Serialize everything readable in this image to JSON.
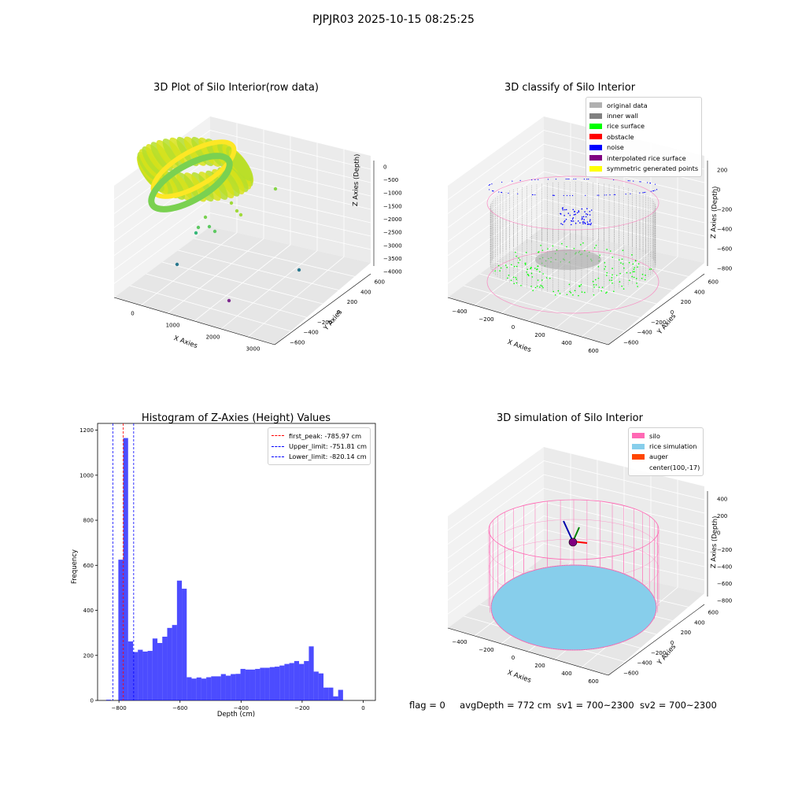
{
  "figure_title": "PJPJR03 2025-10-15 08:25:25",
  "footer": {
    "flag": "flag = 0",
    "avg_depth": "avgDepth = 772 cm",
    "sv1": "sv1 = 700~2300",
    "sv2": "sv2 = 700~2300"
  },
  "chart_data": [
    {
      "type": "scatter",
      "projection": "3d",
      "title": "3D Plot of Silo Interior(row data)",
      "xlabel": "X Axies",
      "ylabel": "Y Axies",
      "zlabel": "Z Axies (Depth)",
      "x_ticks": [
        "0",
        "1000",
        "2000",
        "3000"
      ],
      "y_ticks": [
        "600",
        "400",
        "200",
        "0",
        "−200",
        "−400",
        "−600"
      ],
      "z_ticks": [
        "0",
        "−500",
        "−1000",
        "−1500",
        "−2000",
        "−2500",
        "−3000",
        "−3500",
        "−4000"
      ],
      "colormap": "viridis by depth",
      "outliers": [
        {
          "x": 1300,
          "y": 200,
          "z": -1050
        },
        {
          "x": 400,
          "y": 0,
          "z": -1700
        },
        {
          "x": 200,
          "y": -100,
          "z": -2200
        },
        {
          "x": 3000,
          "y": 100,
          "z": -3600
        },
        {
          "x": 2600,
          "y": -350,
          "z": -4100
        },
        {
          "x": -100,
          "y": -500,
          "z": -3500
        }
      ]
    },
    {
      "type": "scatter",
      "projection": "3d",
      "title": "3D classify of Silo Interior",
      "xlabel": "X Axies",
      "ylabel": "Y Axies",
      "zlabel": "Z Axies (Depth)",
      "x_ticks": [
        "−400",
        "−200",
        "0",
        "200",
        "400",
        "600"
      ],
      "y_ticks": [
        "600",
        "400",
        "200",
        "0",
        "−200",
        "−400",
        "−600"
      ],
      "z_ticks": [
        "200",
        "0",
        "−200",
        "−400",
        "−600",
        "−800"
      ],
      "legend": [
        {
          "label": "original data",
          "color": "#b0b0b0"
        },
        {
          "label": "inner wall",
          "color": "#808080"
        },
        {
          "label": "rice surface",
          "color": "#00ff00"
        },
        {
          "label": "obstacle",
          "color": "#ff0000"
        },
        {
          "label": "noise",
          "color": "#0000ff"
        },
        {
          "label": "interpolated rice surface",
          "color": "#800080"
        },
        {
          "label": "symmetric generated points",
          "color": "#ffff00"
        }
      ],
      "legend_loc": "upper right"
    },
    {
      "type": "bar",
      "title": "Histogram of Z-Axies (Height) Values",
      "xlabel": "Depth (cm)",
      "ylabel": "Frequency",
      "xlim": [
        -870,
        40
      ],
      "ylim": [
        0,
        1230
      ],
      "x_ticks": [
        -800,
        -600,
        -400,
        -200,
        0
      ],
      "x_tick_labels": [
        "−800",
        "−600",
        "−400",
        "−200",
        "0"
      ],
      "y_ticks": [
        0,
        200,
        400,
        600,
        800,
        1000,
        1200
      ],
      "bin_width": 16,
      "bin_start": -802,
      "values": [
        625,
        1165,
        262,
        215,
        225,
        217,
        220,
        275,
        255,
        283,
        322,
        335,
        532,
        496,
        103,
        97,
        102,
        97,
        103,
        107,
        107,
        117,
        110,
        117,
        118,
        140,
        137,
        137,
        140,
        145,
        145,
        148,
        150,
        155,
        162,
        166,
        175,
        162,
        175,
        240,
        128,
        120,
        57,
        57,
        18,
        47
      ],
      "extra_bins": [
        {
          "x0": -842,
          "value": 3
        }
      ],
      "bar_color": "#0000ff",
      "legend": [
        {
          "label": "first_peak: -785.97 cm",
          "color": "#ff0000",
          "value": -785.97
        },
        {
          "label": "Upper_limit: -751.81 cm",
          "color": "#0000ff",
          "value": -751.81
        },
        {
          "label": "Lower_limit: -820.14 cm",
          "color": "#0000ff",
          "value": -820.14
        }
      ],
      "legend_loc": "upper right"
    },
    {
      "type": "scatter",
      "projection": "3d",
      "title": "3D simulation of Silo Interior",
      "xlabel": "X Axies",
      "ylabel": "Y Axies",
      "zlabel": "Z Axies (Depth)",
      "x_ticks": [
        "−400",
        "−200",
        "0",
        "200",
        "400",
        "600"
      ],
      "y_ticks": [
        "600",
        "400",
        "200",
        "0",
        "−200",
        "−400",
        "−600"
      ],
      "z_ticks": [
        "400",
        "200",
        "0",
        "−200",
        "−400",
        "−600",
        "−800"
      ],
      "legend": [
        {
          "label": "silo",
          "color": "#ff69b4"
        },
        {
          "label": "rice simulation",
          "color": "#87ceeb"
        },
        {
          "label": "auger",
          "color": "#ff4500"
        },
        {
          "label": "center(100,-17)",
          "color": ""
        }
      ],
      "legend_loc": "upper right"
    }
  ]
}
